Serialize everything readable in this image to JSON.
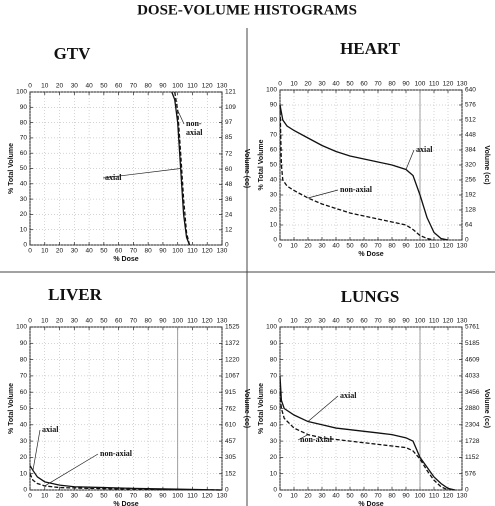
{
  "title": "DOSE-VOLUME HISTOGRAMS",
  "chart_data": [
    {
      "type": "line",
      "title": "GTV",
      "xlabel": "% Dose",
      "ylabel": "% Total Volume",
      "y2label": "Volume (cc)",
      "xlim": [
        0,
        130
      ],
      "xticks": [
        0,
        10,
        20,
        30,
        40,
        50,
        60,
        70,
        80,
        90,
        100,
        110,
        120,
        130
      ],
      "ylim": [
        0,
        100
      ],
      "yticks": [
        0,
        10,
        20,
        30,
        40,
        50,
        60,
        70,
        80,
        90,
        100
      ],
      "y2lim": [
        0,
        121
      ],
      "y2ticks": [
        0,
        12,
        24,
        36,
        48,
        60,
        72,
        85,
        97,
        109,
        121
      ],
      "grid": true,
      "series": [
        {
          "name": "axial",
          "color": "#111111",
          "style": "solid",
          "x": [
            96,
            98,
            100,
            102,
            104,
            106,
            108
          ],
          "values": [
            100,
            95,
            80,
            50,
            20,
            5,
            0
          ]
        },
        {
          "name": "non-axial",
          "color": "#111111",
          "style": "dashed",
          "x": [
            98,
            100,
            102,
            104,
            106,
            108
          ],
          "values": [
            100,
            88,
            60,
            30,
            8,
            0
          ]
        }
      ]
    },
    {
      "type": "line",
      "title": "HEART",
      "xlabel": "% Dose",
      "ylabel": "% Total Volume",
      "y2label": "Volume (cc)",
      "xlim": [
        0,
        130
      ],
      "xticks": [
        0,
        10,
        20,
        30,
        40,
        50,
        60,
        70,
        80,
        90,
        100,
        110,
        120,
        130
      ],
      "ylim": [
        0,
        100
      ],
      "yticks": [
        0,
        10,
        20,
        30,
        40,
        50,
        60,
        70,
        80,
        90,
        100
      ],
      "y2lim": [
        0,
        640
      ],
      "y2ticks": [
        0,
        64,
        128,
        192,
        256,
        320,
        384,
        448,
        512,
        576,
        640
      ],
      "grid": true,
      "reference_line": 100,
      "series": [
        {
          "name": "axial",
          "color": "#111111",
          "style": "solid",
          "x": [
            0,
            2,
            5,
            10,
            20,
            30,
            40,
            50,
            60,
            70,
            80,
            90,
            95,
            100,
            105,
            110,
            115,
            120
          ],
          "values": [
            90,
            80,
            76,
            73,
            68,
            63,
            59,
            56,
            54,
            52,
            50,
            47,
            43,
            30,
            15,
            5,
            1,
            0
          ]
        },
        {
          "name": "non-axial",
          "color": "#111111",
          "style": "dashed",
          "x": [
            0,
            1,
            2,
            5,
            10,
            20,
            30,
            40,
            50,
            60,
            70,
            80,
            90,
            95,
            100,
            105,
            110
          ],
          "values": [
            90,
            50,
            40,
            36,
            33,
            28,
            24,
            21,
            18,
            16,
            14,
            12,
            10,
            7,
            3,
            1,
            0
          ]
        }
      ]
    },
    {
      "type": "line",
      "title": "LIVER",
      "xlabel": "% Dose",
      "ylabel": "% Total Volume",
      "y2label": "Volume (cc)",
      "xlim": [
        0,
        130
      ],
      "xticks": [
        0,
        10,
        20,
        30,
        40,
        50,
        60,
        70,
        80,
        90,
        100,
        110,
        120,
        130
      ],
      "ylim": [
        0,
        100
      ],
      "yticks": [
        0,
        10,
        20,
        30,
        40,
        50,
        60,
        70,
        80,
        90,
        100
      ],
      "y2lim": [
        0,
        1525
      ],
      "y2ticks": [
        0,
        152,
        305,
        457,
        610,
        762,
        915,
        1067,
        1220,
        1372,
        1525
      ],
      "grid": true,
      "reference_line": 100,
      "series": [
        {
          "name": "axial",
          "color": "#111111",
          "style": "solid",
          "x": [
            0,
            2,
            5,
            10,
            20,
            30,
            50,
            70,
            100,
            130
          ],
          "values": [
            15,
            12,
            8,
            5,
            3,
            2,
            1.5,
            1,
            0.5,
            0
          ]
        },
        {
          "name": "non-axial",
          "color": "#111111",
          "style": "dashed",
          "x": [
            0,
            2,
            5,
            10,
            20,
            40,
            70,
            100,
            130
          ],
          "values": [
            10,
            6,
            4,
            2.5,
            1.5,
            1,
            0.5,
            0.2,
            0
          ]
        }
      ]
    },
    {
      "type": "line",
      "title": "LUNGS",
      "xlabel": "% Dose",
      "ylabel": "% Total Volume",
      "y2label": "Volume (cc)",
      "xlim": [
        0,
        130
      ],
      "xticks": [
        0,
        10,
        20,
        30,
        40,
        50,
        60,
        70,
        80,
        90,
        100,
        110,
        120,
        130
      ],
      "ylim": [
        0,
        100
      ],
      "yticks": [
        0,
        10,
        20,
        30,
        40,
        50,
        60,
        70,
        80,
        90,
        100
      ],
      "y2lim": [
        0,
        5761
      ],
      "y2ticks": [
        0,
        576,
        1152,
        1728,
        2304,
        2880,
        3456,
        4033,
        4609,
        5185,
        5761
      ],
      "grid": true,
      "reference_line": 100,
      "series": [
        {
          "name": "axial",
          "color": "#111111",
          "style": "solid",
          "x": [
            0,
            1,
            3,
            10,
            20,
            30,
            40,
            50,
            60,
            70,
            80,
            90,
            95,
            100,
            105,
            110,
            115,
            120,
            125
          ],
          "values": [
            70,
            55,
            50,
            46,
            42,
            40,
            38,
            37,
            36,
            35,
            34,
            32,
            30,
            20,
            14,
            8,
            4,
            1,
            0
          ]
        },
        {
          "name": "non-axial",
          "color": "#111111",
          "style": "dashed",
          "x": [
            0,
            1,
            3,
            10,
            20,
            30,
            40,
            50,
            60,
            70,
            80,
            90,
            95,
            100,
            105,
            110,
            115,
            120
          ],
          "values": [
            60,
            50,
            44,
            38,
            34,
            32,
            31,
            30,
            29,
            28,
            27,
            26,
            24,
            19,
            12,
            6,
            2,
            0
          ]
        }
      ]
    }
  ]
}
